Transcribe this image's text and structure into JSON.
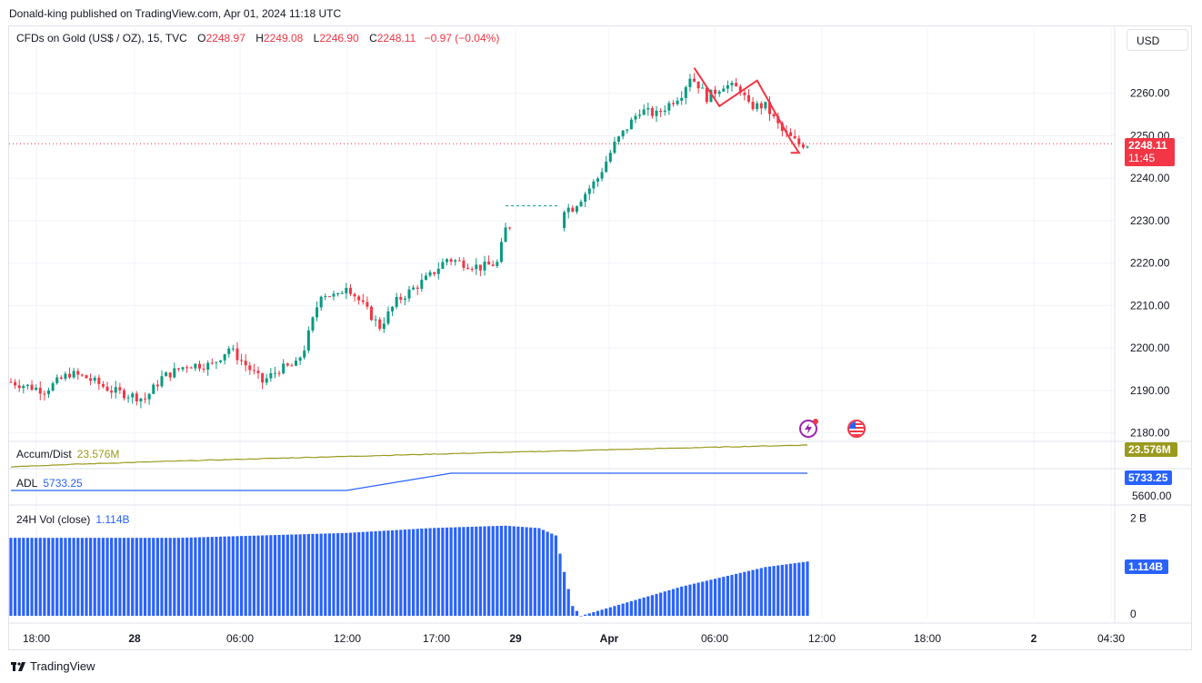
{
  "publisher": "Donald-king published on TradingView.com, Apr 01, 2024 11:18 UTC",
  "legend": {
    "symbol": "CFDs on Gold (US$ / OZ), 15, TVC",
    "o_label": "O",
    "o": "2248.97",
    "h_label": "H",
    "h": "2249.08",
    "l_label": "L",
    "l": "2246.90",
    "c_label": "C",
    "c": "2248.11",
    "change": "−0.97 (−0.04%)"
  },
  "currency_button": "USD",
  "price_axis": {
    "ticks": [
      "2260.00",
      "2250.00",
      "2240.00",
      "2230.00",
      "2220.00",
      "2210.00",
      "2200.00",
      "2190.00",
      "2180.00"
    ],
    "last_price": "2248.11",
    "countdown": "11:45"
  },
  "time_axis": [
    "18:00",
    "28",
    "06:00",
    "12:00",
    "17:00",
    "29",
    "Apr",
    "06:00",
    "12:00",
    "18:00",
    "2",
    "04:30"
  ],
  "accum_dist": {
    "label": "Accum/Dist",
    "value": "23.576M"
  },
  "adl": {
    "label": "ADL",
    "value": "5733.25",
    "tick": "5600.00"
  },
  "vol24": {
    "label": "24H Vol (close)",
    "value": "1.114B",
    "ticks": [
      "2 B",
      "0"
    ]
  },
  "footer": "TradingView",
  "colors": {
    "up": "#089981",
    "down": "#f23645",
    "accum": "#9a9a1e",
    "adl": "#2962ff",
    "volume": "#2962ff"
  },
  "icons": {
    "event_1": "lightning-event-icon",
    "event_2": "us-flag-event-icon"
  },
  "chart_data": {
    "type": "candlestick",
    "timeframe": "15",
    "ylim": [
      2178,
      2270
    ],
    "price_anchors": [
      [
        0,
        2192
      ],
      [
        8,
        2190
      ],
      [
        14,
        2194
      ],
      [
        18,
        2193
      ],
      [
        24,
        2190
      ],
      [
        32,
        2188
      ],
      [
        36,
        2193
      ],
      [
        42,
        2196
      ],
      [
        48,
        2196
      ],
      [
        52,
        2200
      ],
      [
        56,
        2196
      ],
      [
        60,
        2192
      ],
      [
        64,
        2195
      ],
      [
        68,
        2196
      ],
      [
        70,
        2200
      ],
      [
        74,
        2213
      ],
      [
        78,
        2212
      ],
      [
        80,
        2215
      ],
      [
        84,
        2210
      ],
      [
        88,
        2205
      ],
      [
        92,
        2211
      ],
      [
        96,
        2214
      ],
      [
        100,
        2217
      ],
      [
        104,
        2221
      ],
      [
        108,
        2220
      ],
      [
        112,
        2219
      ],
      [
        116,
        2220
      ],
      [
        118,
        2228
      ],
      [
        124,
        2233
      ],
      [
        134,
        2233
      ],
      [
        140,
        2240
      ],
      [
        144,
        2248
      ],
      [
        150,
        2256
      ],
      [
        154,
        2255
      ],
      [
        160,
        2260
      ],
      [
        162,
        2264
      ],
      [
        164,
        2262
      ],
      [
        166,
        2259
      ],
      [
        170,
        2262
      ],
      [
        174,
        2261
      ],
      [
        176,
        2257
      ],
      [
        180,
        2257
      ],
      [
        184,
        2251
      ],
      [
        188,
        2248
      ],
      [
        190,
        2248
      ]
    ],
    "pattern_line": [
      [
        163,
        2266
      ],
      [
        169,
        2257
      ],
      [
        178,
        2263
      ],
      [
        186,
        2249
      ],
      [
        188,
        2246
      ],
      [
        186,
        2246
      ]
    ],
    "accum_dist_range": [
      22.9,
      23.576
    ],
    "adl_range": [
      5600,
      5733.25
    ],
    "vol_anchors": [
      [
        0,
        1.6
      ],
      [
        40,
        1.6
      ],
      [
        80,
        1.7
      ],
      [
        100,
        1.8
      ],
      [
        118,
        1.85
      ],
      [
        126,
        1.8
      ],
      [
        130,
        1.65
      ],
      [
        132,
        0.9
      ],
      [
        134,
        0.2
      ],
      [
        136,
        0.0
      ],
      [
        142,
        0.15
      ],
      [
        160,
        0.6
      ],
      [
        180,
        1.0
      ],
      [
        190,
        1.114
      ]
    ],
    "vol_ylim": [
      0,
      2.2
    ]
  }
}
